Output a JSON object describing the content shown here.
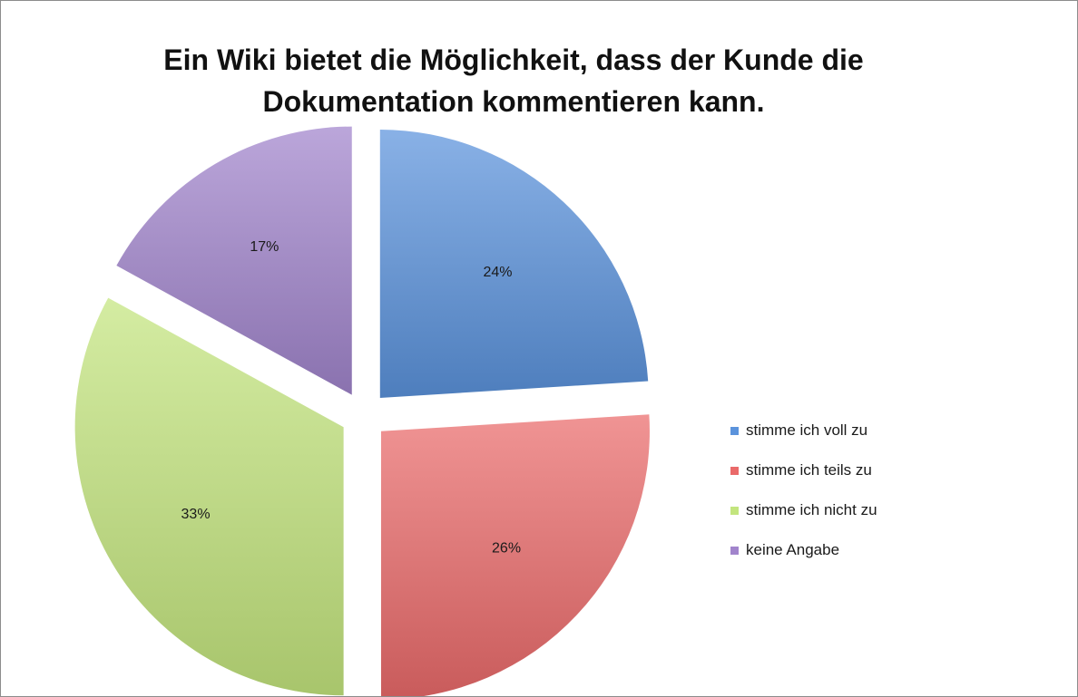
{
  "chart_data": {
    "type": "pie",
    "title_lines": [
      "Ein Wiki bietet die Möglichkeit, dass der Kunde die",
      "Dokumentation kommentieren kann."
    ],
    "slices": [
      {
        "label": "stimme ich voll zu",
        "value": 24,
        "value_label": "24%",
        "color": "#5b93dc"
      },
      {
        "label": "stimme ich teils zu",
        "value": 26,
        "value_label": "26%",
        "color": "#ea6a6a"
      },
      {
        "label": "stimme ich nicht zu",
        "value": 33,
        "value_label": "33%",
        "color": "#c3e57e"
      },
      {
        "label": "keine Angabe",
        "value": 17,
        "value_label": "17%",
        "color": "#a184cc"
      }
    ],
    "exploded": true,
    "start_angle": "12 o'clock",
    "direction": "clockwise",
    "legend_position": "right"
  }
}
